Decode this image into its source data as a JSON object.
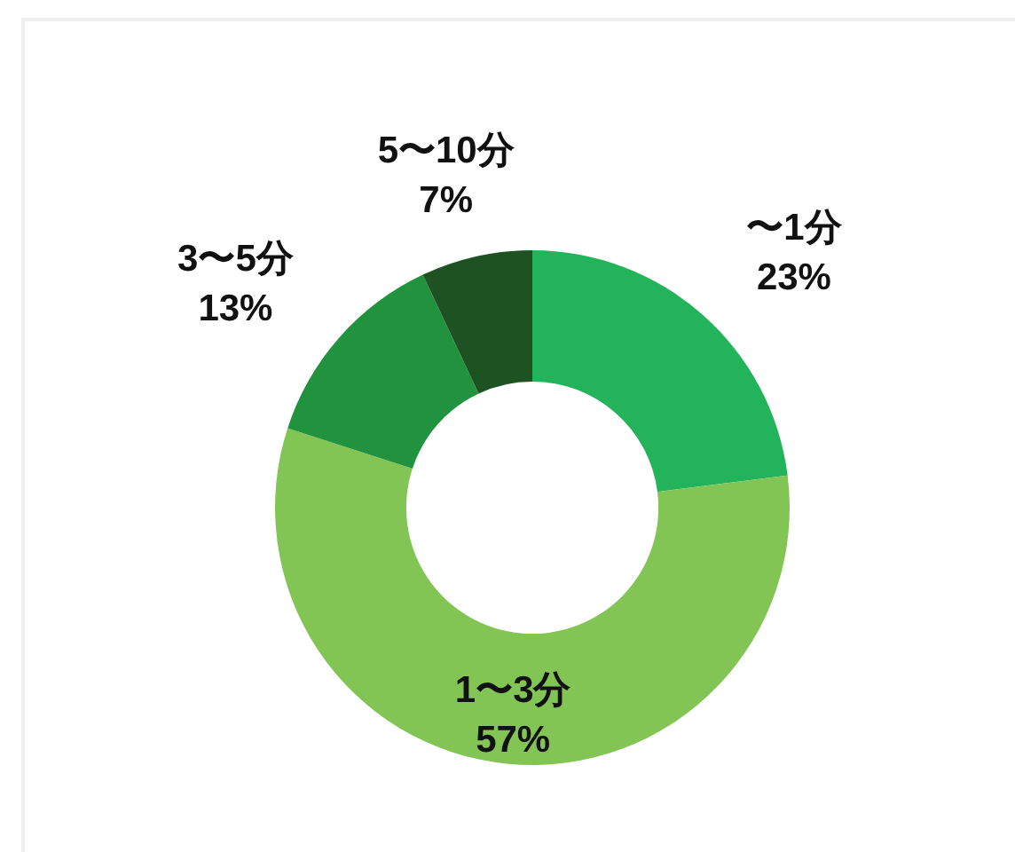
{
  "chart_data": {
    "type": "donut",
    "categories": [
      "〜1分",
      "1〜3分",
      "3〜5分",
      "5〜10分"
    ],
    "values": [
      23,
      57,
      13,
      7
    ],
    "colors": [
      "#23b35a",
      "#82c555",
      "#21933f",
      "#1f5222"
    ],
    "value_labels": [
      "23%",
      "57%",
      "13%",
      "7%"
    ]
  }
}
